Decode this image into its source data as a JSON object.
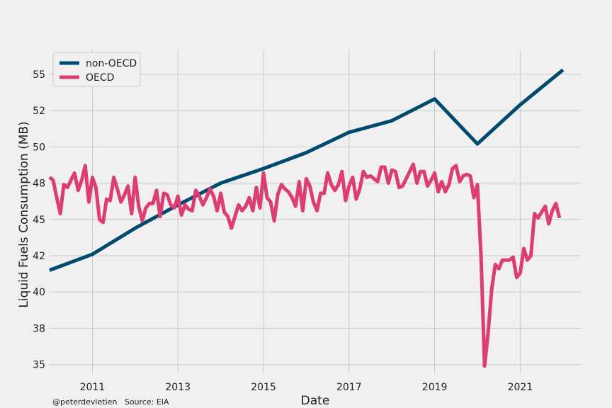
{
  "chart_data": {
    "type": "line",
    "title": "",
    "xlabel": "Date",
    "ylabel": "Liquid Fuels Consumption (MB)",
    "xlim": [
      "2010-01",
      "2022-06"
    ],
    "ylim": [
      34.4,
      56.7
    ],
    "x_ticks": [
      "2011",
      "2013",
      "2015",
      "2017",
      "2019",
      "2021"
    ],
    "y_ticks": [
      35,
      37.5,
      40,
      42.5,
      45,
      47.5,
      50,
      52.5,
      55
    ],
    "y_tick_labels": [
      "35",
      "38",
      "40",
      "42",
      "45",
      "48",
      "50",
      "52",
      "55"
    ],
    "grid": true,
    "legend_position": "top-left",
    "series": [
      {
        "name": "non-OECD",
        "color": "#004a6e",
        "x": [
          "2010-01",
          "2011-01",
          "2012-01",
          "2013-01",
          "2014-01",
          "2015-01",
          "2016-01",
          "2017-01",
          "2018-01",
          "2019-01",
          "2020-01",
          "2021-01",
          "2022-01"
        ],
        "y": [
          41.5,
          42.6,
          44.4,
          46.0,
          47.5,
          48.5,
          49.6,
          51.0,
          51.8,
          53.3,
          50.2,
          52.9,
          55.3
        ]
      },
      {
        "name": "OECD",
        "color": "#dc3d73",
        "x": [
          "2010-01",
          "2010-02",
          "2010-03",
          "2010-04",
          "2010-05",
          "2010-06",
          "2010-07",
          "2010-08",
          "2010-09",
          "2010-10",
          "2010-11",
          "2010-12",
          "2011-01",
          "2011-02",
          "2011-03",
          "2011-04",
          "2011-05",
          "2011-06",
          "2011-07",
          "2011-08",
          "2011-09",
          "2011-10",
          "2011-11",
          "2011-12",
          "2012-01",
          "2012-02",
          "2012-03",
          "2012-04",
          "2012-05",
          "2012-06",
          "2012-07",
          "2012-08",
          "2012-09",
          "2012-10",
          "2012-11",
          "2012-12",
          "2013-01",
          "2013-02",
          "2013-03",
          "2013-04",
          "2013-05",
          "2013-06",
          "2013-07",
          "2013-08",
          "2013-09",
          "2013-10",
          "2013-11",
          "2013-12",
          "2014-01",
          "2014-02",
          "2014-03",
          "2014-04",
          "2014-05",
          "2014-06",
          "2014-07",
          "2014-08",
          "2014-09",
          "2014-10",
          "2014-11",
          "2014-12",
          "2015-01",
          "2015-02",
          "2015-03",
          "2015-04",
          "2015-05",
          "2015-06",
          "2015-07",
          "2015-08",
          "2015-09",
          "2015-10",
          "2015-11",
          "2015-12",
          "2016-01",
          "2016-02",
          "2016-03",
          "2016-04",
          "2016-05",
          "2016-06",
          "2016-07",
          "2016-08",
          "2016-09",
          "2016-10",
          "2016-11",
          "2016-12",
          "2017-01",
          "2017-02",
          "2017-03",
          "2017-04",
          "2017-05",
          "2017-06",
          "2017-07",
          "2017-08",
          "2017-09",
          "2017-10",
          "2017-11",
          "2017-12",
          "2018-01",
          "2018-02",
          "2018-03",
          "2018-04",
          "2018-05",
          "2018-06",
          "2018-07",
          "2018-08",
          "2018-09",
          "2018-10",
          "2018-11",
          "2018-12",
          "2019-01",
          "2019-02",
          "2019-03",
          "2019-04",
          "2019-05",
          "2019-06",
          "2019-07",
          "2019-08",
          "2019-09",
          "2019-10",
          "2019-11",
          "2019-12",
          "2020-01",
          "2020-02",
          "2020-03",
          "2020-04",
          "2020-05",
          "2020-06",
          "2020-07",
          "2020-08",
          "2020-09",
          "2020-10",
          "2020-11",
          "2020-12",
          "2021-01",
          "2021-02",
          "2021-03",
          "2021-04",
          "2021-05",
          "2021-06",
          "2021-07",
          "2021-08",
          "2021-09",
          "2021-10",
          "2021-11",
          "2021-12"
        ],
        "y": [
          47.9,
          47.7,
          46.5,
          45.4,
          47.4,
          47.2,
          47.7,
          48.2,
          47.0,
          47.7,
          48.7,
          46.2,
          47.9,
          47.2,
          45.0,
          44.8,
          46.4,
          46.3,
          47.9,
          47.1,
          46.2,
          46.7,
          47.3,
          45.4,
          47.9,
          45.9,
          44.9,
          45.8,
          46.1,
          46.1,
          47.0,
          45.2,
          46.8,
          46.7,
          46.0,
          45.8,
          46.6,
          45.3,
          46.0,
          45.7,
          45.6,
          47.0,
          46.6,
          46.0,
          46.5,
          47.1,
          46.6,
          45.6,
          46.8,
          45.5,
          45.2,
          44.4,
          45.2,
          46.0,
          45.6,
          45.9,
          46.5,
          45.6,
          47.2,
          45.8,
          48.2,
          46.5,
          46.2,
          44.9,
          46.7,
          47.4,
          47.1,
          46.9,
          46.5,
          45.9,
          47.6,
          45.6,
          47.8,
          47.3,
          46.2,
          45.6,
          46.8,
          46.8,
          48.2,
          47.4,
          47.0,
          47.4,
          48.3,
          46.3,
          47.3,
          47.9,
          46.4,
          47.1,
          48.3,
          47.9,
          48.0,
          47.8,
          47.6,
          48.6,
          48.6,
          47.5,
          48.4,
          48.3,
          47.2,
          47.3,
          47.8,
          48.3,
          48.8,
          47.5,
          48.3,
          48.3,
          47.3,
          47.7,
          48.2,
          46.9,
          47.6,
          46.9,
          47.4,
          48.5,
          48.7,
          47.6,
          48.0,
          48.1,
          48.0,
          46.5,
          47.4,
          42.5,
          34.9,
          37.2,
          40.2,
          41.9,
          41.6,
          42.2,
          42.2,
          42.2,
          42.4,
          41.0,
          41.3,
          43.0,
          42.2,
          42.5,
          45.4,
          45.1,
          45.5,
          45.9,
          44.7,
          45.6,
          46.1,
          45.1
        ]
      }
    ]
  },
  "footer": {
    "credit": "@peterdevietien   Source: EIA"
  }
}
